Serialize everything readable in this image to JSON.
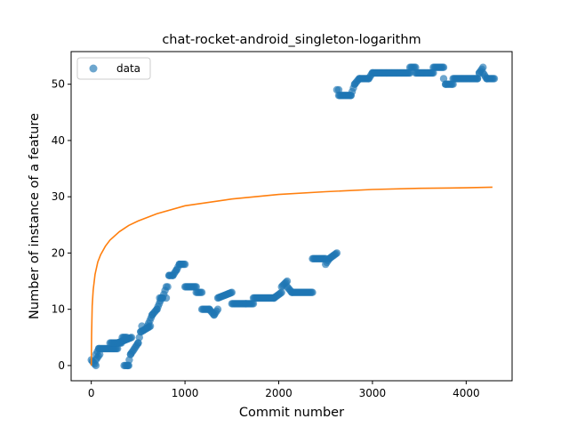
{
  "chart_data": {
    "type": "scatter",
    "title": "chat-rocket-android_singleton-logarithm",
    "xlabel": "Commit number",
    "ylabel": "Number of instance of a feature",
    "xlim": [
      -215,
      4490
    ],
    "ylim": [
      -2.7,
      55.8
    ],
    "xticks": [
      0,
      1000,
      2000,
      3000,
      4000
    ],
    "yticks": [
      0,
      10,
      20,
      30,
      40,
      50
    ],
    "grid": false,
    "legend": {
      "position": "top-left",
      "entries": [
        "data"
      ]
    },
    "colors": {
      "data": "#1f77b4",
      "fit": "#ff7f0e"
    },
    "series": [
      {
        "name": "data",
        "kind": "scatter",
        "segments": [
          [
            0,
            1,
            0,
            50
          ],
          [
            50,
            1,
            2,
            40
          ],
          [
            50,
            2,
            3,
            30
          ],
          [
            80,
            3,
            3,
            200
          ],
          [
            200,
            4,
            4,
            120
          ],
          [
            280,
            4,
            5,
            150
          ],
          [
            330,
            5,
            5,
            50
          ],
          [
            350,
            0,
            0,
            50
          ],
          [
            390,
            0,
            2,
            30
          ],
          [
            420,
            2,
            4,
            80
          ],
          [
            500,
            4,
            7,
            40
          ],
          [
            530,
            6,
            7,
            100
          ],
          [
            600,
            7,
            9,
            50
          ],
          [
            650,
            9,
            10,
            50
          ],
          [
            700,
            10,
            12,
            50
          ],
          [
            730,
            12,
            12,
            30
          ],
          [
            760,
            12,
            14,
            40
          ],
          [
            800,
            12,
            16,
            30
          ],
          [
            830,
            16,
            16,
            40
          ],
          [
            870,
            16,
            17,
            40
          ],
          [
            910,
            17,
            18,
            30
          ],
          [
            940,
            18,
            18,
            60
          ],
          [
            1000,
            14,
            14,
            120
          ],
          [
            1120,
            13,
            13,
            60
          ],
          [
            1180,
            10,
            10,
            80
          ],
          [
            1260,
            10,
            9,
            50
          ],
          [
            1310,
            9,
            10,
            40
          ],
          [
            1350,
            12,
            13,
            150
          ],
          [
            1500,
            11,
            11,
            150
          ],
          [
            1650,
            11,
            11,
            80
          ],
          [
            1730,
            12,
            12,
            220
          ],
          [
            1950,
            12,
            13,
            80
          ],
          [
            2030,
            14,
            15,
            60
          ],
          [
            2090,
            14,
            13,
            50
          ],
          [
            2140,
            13,
            13,
            220
          ],
          [
            2360,
            19,
            19,
            140
          ],
          [
            2500,
            18,
            19,
            40
          ],
          [
            2540,
            19,
            20,
            80
          ],
          [
            2620,
            49,
            49,
            20
          ],
          [
            2640,
            48,
            48,
            130
          ],
          [
            2770,
            48,
            50,
            40
          ],
          [
            2810,
            50,
            51,
            50
          ],
          [
            2860,
            51,
            51,
            100
          ],
          [
            2960,
            51,
            52,
            40
          ],
          [
            3000,
            52,
            52,
            400
          ],
          [
            3400,
            53,
            53,
            60
          ],
          [
            3460,
            52,
            52,
            190
          ],
          [
            3650,
            53,
            53,
            110
          ],
          [
            3760,
            51,
            50,
            20
          ],
          [
            3780,
            50,
            50,
            80
          ],
          [
            3860,
            51,
            51,
            260
          ],
          [
            4120,
            51,
            52,
            20
          ],
          [
            4140,
            52,
            53,
            40
          ],
          [
            4180,
            52,
            51,
            40
          ],
          [
            4220,
            51,
            51,
            80
          ]
        ]
      },
      {
        "name": "fit",
        "kind": "line",
        "x": [
          0,
          3,
          10,
          20,
          40,
          70,
          100,
          150,
          200,
          300,
          400,
          500,
          700,
          1000,
          1500,
          2000,
          2500,
          3000,
          3500,
          4000,
          4280
        ],
        "y": [
          0,
          5.3,
          10.6,
          13.4,
          16.2,
          18.4,
          19.7,
          21.2,
          22.3,
          23.8,
          24.9,
          25.7,
          27.0,
          28.4,
          29.6,
          30.4,
          30.9,
          31.3,
          31.5,
          31.6,
          31.7
        ]
      }
    ]
  }
}
